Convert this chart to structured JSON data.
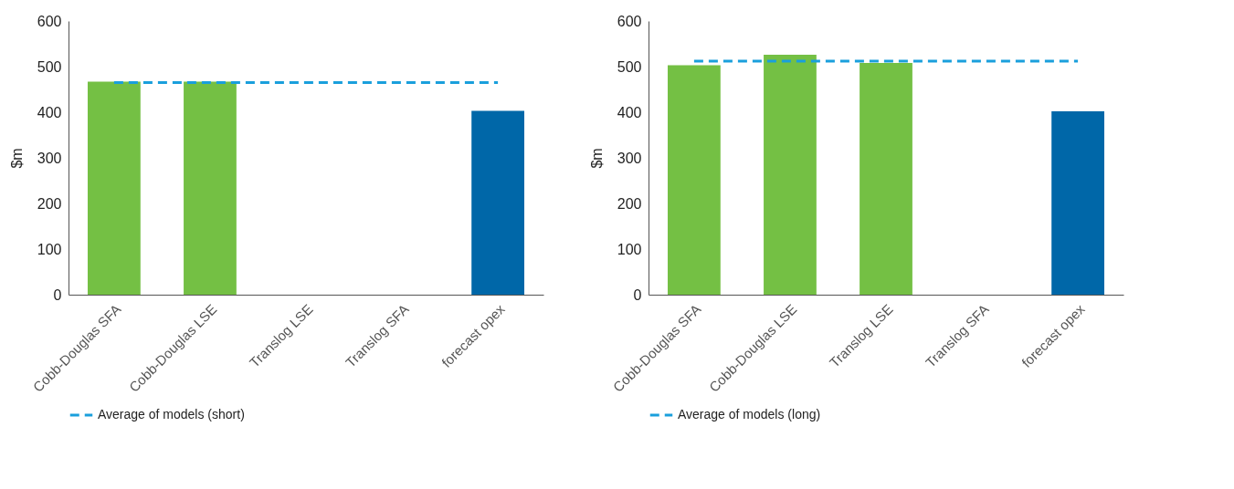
{
  "chart_data": [
    {
      "type": "bar",
      "ylabel": "$m",
      "categories": [
        "Cobb-Douglas SFA",
        "Cobb-Douglas LSE",
        "Translog LSE",
        "Translog SFA",
        "forecast opex"
      ],
      "ylim": [
        0,
        600
      ],
      "yticks": [
        0,
        100,
        200,
        300,
        400,
        500,
        600
      ],
      "grid": false,
      "legend": "bottom",
      "series": [
        {
          "colors": [
            "#74c044",
            "#74c044",
            "#74c044",
            "#74c044",
            "#0067a8"
          ],
          "values": [
            467,
            467,
            null,
            null,
            403
          ]
        },
        {
          "type": "line",
          "name": "Average of models (short)",
          "color": "#1a9fdc",
          "line_style": "dashed",
          "marker": "none",
          "values": [
            465,
            465,
            465,
            465,
            465
          ]
        }
      ]
    },
    {
      "type": "bar",
      "ylabel": "$m",
      "categories": [
        "Cobb-Douglas SFA",
        "Cobb-Douglas LSE",
        "Translog LSE",
        "Translog SFA",
        "forecast opex"
      ],
      "ylim": [
        0,
        600
      ],
      "yticks": [
        0,
        100,
        200,
        300,
        400,
        500,
        600
      ],
      "grid": false,
      "legend": "bottom",
      "series": [
        {
          "colors": [
            "#74c044",
            "#74c044",
            "#74c044",
            "#74c044",
            "#0067a8"
          ],
          "values": [
            503,
            526,
            508,
            null,
            402
          ]
        },
        {
          "type": "line",
          "name": "Average of models (long)",
          "color": "#1a9fdc",
          "line_style": "dashed",
          "marker": "none",
          "values": [
            512,
            512,
            512,
            512,
            512
          ]
        }
      ]
    }
  ]
}
